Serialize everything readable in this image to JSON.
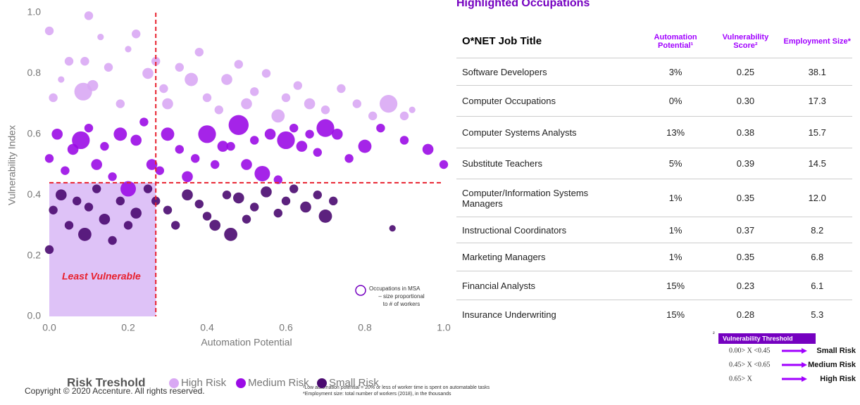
{
  "chart_data": {
    "type": "scatter",
    "xlabel": "Automation Potential",
    "ylabel": "Vulnerability Index",
    "xlim": [
      0,
      1
    ],
    "ylim": [
      0,
      1
    ],
    "xticks": [
      {
        "value": 0,
        "label": "0.0"
      },
      {
        "value": 0.2,
        "label": "0.2"
      },
      {
        "value": 0.4,
        "label": "0.4"
      },
      {
        "value": 0.6,
        "label": "0.6"
      },
      {
        "value": 0.8,
        "label": "0.8"
      },
      {
        "value": 1,
        "label": "1.0"
      }
    ],
    "yticks": [
      {
        "value": 0,
        "label": "0.0"
      },
      {
        "value": 0.2,
        "label": "0.2"
      },
      {
        "value": 0.4,
        "label": "0.4"
      },
      {
        "value": 0.6,
        "label": "0.6"
      },
      {
        "value": 0.8,
        "label": "0.8"
      },
      {
        "value": 1,
        "label": "1.0"
      }
    ],
    "threshold_x": 0.27,
    "threshold_y": 0.44,
    "threshold_color": "#e8212e",
    "region_label": "Least Vulnerable",
    "region_color": "#d6b3f5",
    "annotation": [
      "Occupations in MSA",
      "– size proportional",
      "to # of workers"
    ],
    "legend_title": "Risk Treshold",
    "series": [
      {
        "name": "High Risk",
        "color": "#d9a8f4",
        "x": [
          0.0,
          0.01,
          0.03,
          0.05,
          0.086,
          0.09,
          0.1,
          0.11,
          0.13,
          0.15,
          0.18,
          0.2,
          0.22,
          0.25,
          0.27,
          0.29,
          0.3,
          0.33,
          0.36,
          0.38,
          0.4,
          0.43,
          0.45,
          0.48,
          0.5,
          0.52,
          0.55,
          0.58,
          0.6,
          0.63,
          0.66,
          0.7,
          0.74,
          0.78,
          0.82,
          0.86,
          0.9,
          0.92
        ],
        "values": [
          0.94,
          0.72,
          0.78,
          0.84,
          0.74,
          0.84,
          0.99,
          0.76,
          0.92,
          0.82,
          0.7,
          0.88,
          0.93,
          0.8,
          0.84,
          0.75,
          0.7,
          0.82,
          0.78,
          0.87,
          0.72,
          0.68,
          0.78,
          0.83,
          0.7,
          0.74,
          0.8,
          0.66,
          0.72,
          0.76,
          0.7,
          0.68,
          0.75,
          0.7,
          0.66,
          0.7,
          0.66,
          0.68
        ],
        "sizes": [
          2,
          2,
          1,
          2,
          6,
          2,
          2,
          3,
          1,
          2,
          2,
          1,
          2,
          3,
          2,
          2,
          3,
          2,
          4,
          2,
          2,
          2,
          3,
          2,
          3,
          2,
          2,
          4,
          2,
          2,
          3,
          2,
          2,
          2,
          2,
          6,
          2,
          1
        ]
      },
      {
        "name": "Medium Risk",
        "color": "#9b0ce6",
        "x": [
          0.0,
          0.02,
          0.04,
          0.06,
          0.08,
          0.1,
          0.12,
          0.14,
          0.16,
          0.18,
          0.2,
          0.22,
          0.24,
          0.26,
          0.28,
          0.3,
          0.33,
          0.35,
          0.37,
          0.4,
          0.42,
          0.44,
          0.46,
          0.48,
          0.5,
          0.52,
          0.54,
          0.56,
          0.58,
          0.6,
          0.62,
          0.64,
          0.66,
          0.68,
          0.7,
          0.73,
          0.76,
          0.8,
          0.84,
          0.9,
          0.96,
          1.0
        ],
        "values": [
          0.52,
          0.6,
          0.48,
          0.55,
          0.58,
          0.62,
          0.5,
          0.56,
          0.46,
          0.6,
          0.42,
          0.58,
          0.64,
          0.5,
          0.48,
          0.6,
          0.55,
          0.46,
          0.52,
          0.6,
          0.5,
          0.56,
          0.56,
          0.63,
          0.5,
          0.58,
          0.47,
          0.6,
          0.45,
          0.58,
          0.62,
          0.56,
          0.6,
          0.54,
          0.62,
          0.6,
          0.52,
          0.56,
          0.62,
          0.58,
          0.55,
          0.5
        ],
        "sizes": [
          2,
          3,
          2,
          3,
          6,
          2,
          3,
          2,
          2,
          4,
          5,
          3,
          2,
          3,
          2,
          4,
          2,
          3,
          2,
          6,
          2,
          3,
          2,
          7,
          3,
          2,
          5,
          3,
          2,
          6,
          2,
          3,
          2,
          2,
          6,
          3,
          2,
          4,
          2,
          2,
          3,
          2
        ]
      },
      {
        "name": "Small Risk",
        "color": "#4a0a70",
        "x": [
          0.0,
          0.01,
          0.03,
          0.05,
          0.07,
          0.09,
          0.1,
          0.12,
          0.14,
          0.16,
          0.18,
          0.2,
          0.22,
          0.25,
          0.27,
          0.3,
          0.32,
          0.35,
          0.38,
          0.4,
          0.42,
          0.45,
          0.46,
          0.48,
          0.5,
          0.52,
          0.55,
          0.58,
          0.6,
          0.62,
          0.65,
          0.68,
          0.7,
          0.72,
          0.87
        ],
        "values": [
          0.22,
          0.35,
          0.4,
          0.3,
          0.38,
          0.27,
          0.36,
          0.42,
          0.32,
          0.25,
          0.38,
          0.3,
          0.34,
          0.42,
          0.38,
          0.35,
          0.3,
          0.4,
          0.37,
          0.33,
          0.3,
          0.4,
          0.27,
          0.39,
          0.32,
          0.36,
          0.41,
          0.34,
          0.38,
          0.42,
          0.36,
          0.4,
          0.33,
          0.38,
          0.29
        ],
        "sizes": [
          2,
          2,
          3,
          2,
          2,
          4,
          2,
          2,
          3,
          2,
          2,
          2,
          3,
          2,
          2,
          2,
          2,
          3,
          2,
          2,
          3,
          2,
          4,
          3,
          2,
          2,
          3,
          2,
          2,
          2,
          3,
          2,
          4,
          2,
          1
        ]
      }
    ]
  },
  "copyright": "Copyright © 2020 Accenture. All rights reserved.",
  "footnotes": [
    "¹Low automation potential = 20% or less of worker time is spent on automatable tasks",
    "*Employment size: total number of workers (2018), in the thousands"
  ],
  "table": {
    "title": "Highlighted Occupations",
    "headers": [
      "O*NET Job Title",
      "Automation Potential¹",
      "Vulnerability Score²",
      "Employment Size*"
    ],
    "rows": [
      [
        "Software Developers",
        "3%",
        "0.25",
        "38.1"
      ],
      [
        "Computer Occupations",
        "0%",
        "0.30",
        "17.3"
      ],
      [
        "Computer Systems Analysts",
        "13%",
        "0.38",
        "15.7"
      ],
      [
        "Substitute Teachers",
        "5%",
        "0.39",
        "14.5"
      ],
      [
        "Computer/Information Systems Managers",
        "1%",
        "0.35",
        "12.0"
      ],
      [
        "Instructional Coordinators",
        "1%",
        "0.37",
        "8.2"
      ],
      [
        "Marketing Managers",
        "1%",
        "0.35",
        "6.8"
      ],
      [
        "Financial Analysts",
        "15%",
        "0.23",
        "6.1"
      ],
      [
        "Insurance Underwriting",
        "15%",
        "0.28",
        "5.3"
      ]
    ]
  },
  "threshold_legend": {
    "marker": "²",
    "title": "Vulnerability Threshold",
    "items": [
      {
        "range": "0.00> X <0.45",
        "label": "Small Risk"
      },
      {
        "range": "0.45> X <0.65",
        "label": "Medium Risk"
      },
      {
        "range": "0.65> X",
        "label": "High Risk"
      }
    ]
  }
}
